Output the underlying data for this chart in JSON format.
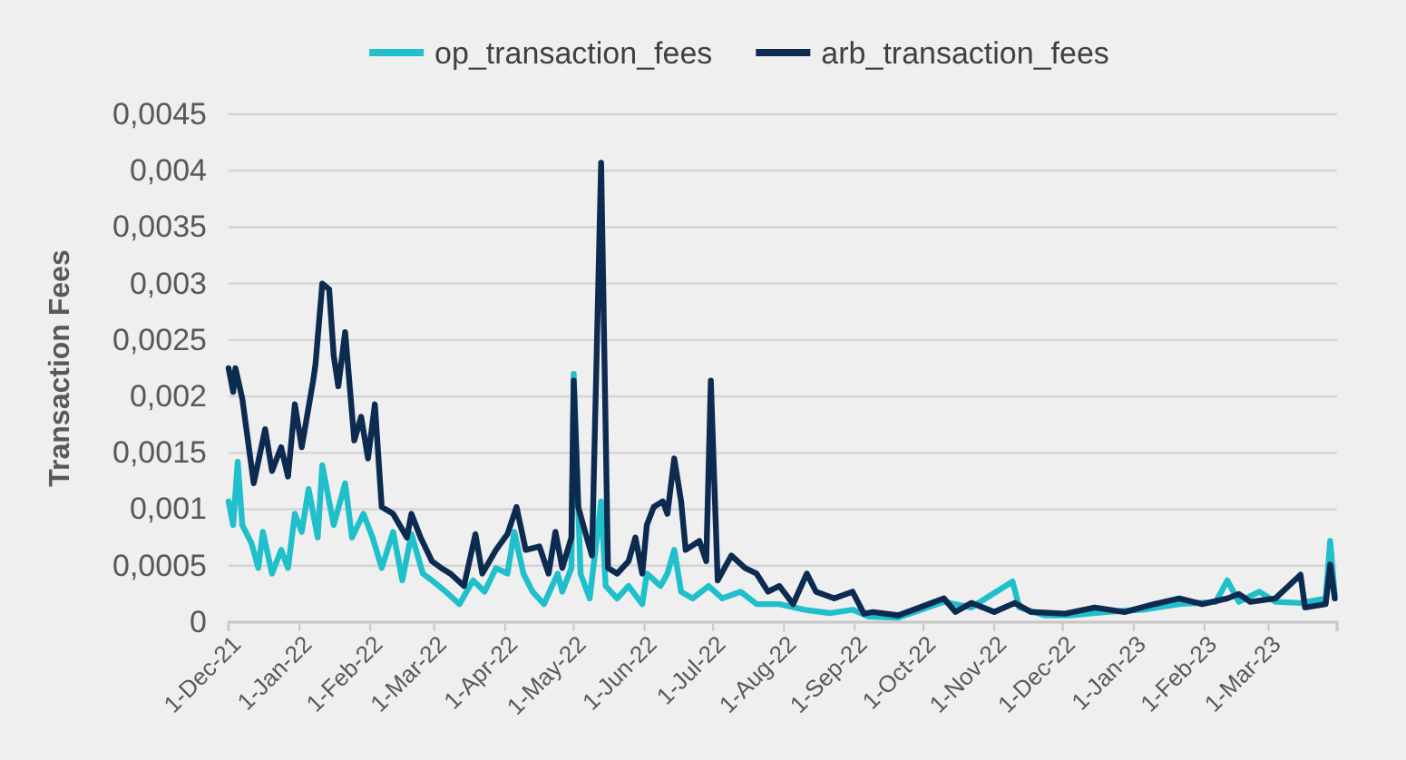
{
  "chart_data": {
    "type": "line",
    "ylabel": "Transaction Fees",
    "legend": "top",
    "grid": "y",
    "marker": "none",
    "line_style": "solid",
    "xlim": [
      "2021-12-01",
      "2023-03-31"
    ],
    "xticks": [
      {
        "value": "2021-12-01",
        "label": "1-Dec-21"
      },
      {
        "value": "2022-01-01",
        "label": "1-Jan-22"
      },
      {
        "value": "2022-02-01",
        "label": "1-Feb-22"
      },
      {
        "value": "2022-03-01",
        "label": "1-Mar-22"
      },
      {
        "value": "2022-04-01",
        "label": "1-Apr-22"
      },
      {
        "value": "2022-05-01",
        "label": "1-May-22"
      },
      {
        "value": "2022-06-01",
        "label": "1-Jun-22"
      },
      {
        "value": "2022-07-01",
        "label": "1-Jul-22"
      },
      {
        "value": "2022-08-01",
        "label": "1-Aug-22"
      },
      {
        "value": "2022-09-01",
        "label": "1-Sep-22"
      },
      {
        "value": "2022-10-01",
        "label": "1-Oct-22"
      },
      {
        "value": "2022-11-01",
        "label": "1-Nov-22"
      },
      {
        "value": "2022-12-01",
        "label": "1-Dec-22"
      },
      {
        "value": "2023-01-01",
        "label": "1-Jan-23"
      },
      {
        "value": "2023-02-01",
        "label": "1-Feb-23"
      },
      {
        "value": "2023-03-01",
        "label": "1-Mar-23"
      }
    ],
    "ylim": [
      0,
      0.0045
    ],
    "yticks": [
      0,
      {
        "value": 0.0005,
        "label": "0,0005"
      },
      {
        "value": 0.001,
        "label": "0,001"
      },
      {
        "value": 0.0015,
        "label": "0,0015"
      },
      {
        "value": 0.002,
        "label": "0,002"
      },
      {
        "value": 0.0025,
        "label": "0,0025"
      },
      {
        "value": 0.003,
        "label": "0,003"
      },
      {
        "value": 0.0035,
        "label": "0,0035"
      },
      {
        "value": 0.004,
        "label": "0,004"
      },
      {
        "value": 0.0045,
        "label": "0,0045"
      }
    ],
    "series": [
      {
        "name": "op_transaction_fees",
        "color": "#1fbfcc",
        "x": [
          "2021-12-01",
          "2021-12-03",
          "2021-12-05",
          "2021-12-07",
          "2021-12-11",
          "2021-12-14",
          "2021-12-16",
          "2021-12-20",
          "2021-12-24",
          "2021-12-27",
          "2021-12-30",
          "2022-01-02",
          "2022-01-05",
          "2022-01-09",
          "2022-01-11",
          "2022-01-14",
          "2022-01-16",
          "2022-01-21",
          "2022-01-24",
          "2022-01-29",
          "2022-02-02",
          "2022-02-06",
          "2022-02-11",
          "2022-02-15",
          "2022-02-19",
          "2022-02-24",
          "2022-02-28",
          "2022-03-06",
          "2022-03-12",
          "2022-03-18",
          "2022-03-23",
          "2022-03-28",
          "2022-04-02",
          "2022-04-05",
          "2022-04-09",
          "2022-04-13",
          "2022-04-18",
          "2022-04-24",
          "2022-04-26",
          "2022-04-30",
          "2022-05-01",
          "2022-05-04",
          "2022-05-08",
          "2022-05-13",
          "2022-05-15",
          "2022-05-20",
          "2022-05-25",
          "2022-05-31",
          "2022-06-02",
          "2022-06-08",
          "2022-06-11",
          "2022-06-14",
          "2022-06-17",
          "2022-06-22",
          "2022-06-29",
          "2022-07-05",
          "2022-07-13",
          "2022-07-20",
          "2022-07-30",
          "2022-08-10",
          "2022-08-21",
          "2022-08-31",
          "2022-09-07",
          "2022-09-20",
          "2022-10-10",
          "2022-10-22",
          "2022-11-09",
          "2022-11-12",
          "2022-11-23",
          "2022-12-04",
          "2022-12-20",
          "2023-01-05",
          "2023-01-21",
          "2023-02-06",
          "2023-02-11",
          "2023-02-16",
          "2023-02-25",
          "2023-03-04",
          "2023-03-15",
          "2023-03-26",
          "2023-03-28",
          "2023-03-30"
        ],
        "values": [
          0.00107,
          0.00086,
          0.00142,
          0.00086,
          0.0007,
          0.00048,
          0.0008,
          0.00043,
          0.00064,
          0.00048,
          0.00096,
          0.0008,
          0.00118,
          0.00075,
          0.00139,
          0.00107,
          0.00086,
          0.00123,
          0.00075,
          0.00096,
          0.00075,
          0.00048,
          0.0008,
          0.00037,
          0.00078,
          0.00043,
          0.00037,
          0.00027,
          0.00016,
          0.00037,
          0.00027,
          0.00048,
          0.00043,
          0.0008,
          0.00043,
          0.00027,
          0.00016,
          0.00043,
          0.00027,
          0.00048,
          0.0022,
          0.00043,
          0.00021,
          0.00107,
          0.00032,
          0.00021,
          0.00032,
          0.00016,
          0.00043,
          0.00032,
          0.00043,
          0.00064,
          0.00027,
          0.00021,
          0.00032,
          0.00021,
          0.00027,
          0.00016,
          0.00016,
          0.00011,
          8e-05,
          0.00011,
          5e-05,
          4e-05,
          0.00018,
          0.00013,
          0.00036,
          0.00013,
          6e-05,
          6e-05,
          9e-05,
          0.00011,
          0.00016,
          0.00018,
          0.00037,
          0.00018,
          0.00027,
          0.00018,
          0.00017,
          0.00021,
          0.00072,
          0.00024
        ]
      },
      {
        "name": "arb_transaction_fees",
        "color": "#0d2b50",
        "x": [
          "2021-12-01",
          "2021-12-03",
          "2021-12-04",
          "2021-12-07",
          "2021-12-12",
          "2021-12-17",
          "2021-12-20",
          "2021-12-24",
          "2021-12-27",
          "2021-12-30",
          "2022-01-02",
          "2022-01-07",
          "2022-01-08",
          "2022-01-11",
          "2022-01-14",
          "2022-01-16",
          "2022-01-18",
          "2022-01-21",
          "2022-01-25",
          "2022-01-28",
          "2022-01-31",
          "2022-02-03",
          "2022-02-06",
          "2022-02-11",
          "2022-02-17",
          "2022-02-19",
          "2022-02-23",
          "2022-02-28",
          "2022-03-04",
          "2022-03-08",
          "2022-03-14",
          "2022-03-19",
          "2022-03-22",
          "2022-03-28",
          "2022-04-02",
          "2022-04-06",
          "2022-04-10",
          "2022-04-16",
          "2022-04-20",
          "2022-04-23",
          "2022-04-26",
          "2022-04-30",
          "2022-05-01",
          "2022-05-03",
          "2022-05-06",
          "2022-05-09",
          "2022-05-13",
          "2022-05-16",
          "2022-05-20",
          "2022-05-25",
          "2022-05-28",
          "2022-05-31",
          "2022-06-02",
          "2022-06-05",
          "2022-06-09",
          "2022-06-11",
          "2022-06-14",
          "2022-06-17",
          "2022-06-19",
          "2022-06-25",
          "2022-06-28",
          "2022-06-30",
          "2022-07-03",
          "2022-07-09",
          "2022-07-15",
          "2022-07-20",
          "2022-07-25",
          "2022-07-30",
          "2022-08-05",
          "2022-08-11",
          "2022-08-15",
          "2022-08-23",
          "2022-08-31",
          "2022-09-05",
          "2022-09-09",
          "2022-09-20",
          "2022-10-10",
          "2022-10-15",
          "2022-10-22",
          "2022-11-01",
          "2022-11-10",
          "2022-11-17",
          "2022-12-02",
          "2022-12-15",
          "2022-12-28",
          "2023-01-10",
          "2023-01-21",
          "2023-01-31",
          "2023-02-11",
          "2023-02-16",
          "2023-02-21",
          "2023-03-04",
          "2023-03-15",
          "2023-03-17",
          "2023-03-26",
          "2023-03-28",
          "2023-03-30"
        ],
        "values": [
          0.00225,
          0.00204,
          0.00225,
          0.00198,
          0.00123,
          0.00171,
          0.00134,
          0.00155,
          0.00129,
          0.00193,
          0.00155,
          0.00214,
          0.00228,
          0.003,
          0.00295,
          0.00236,
          0.00209,
          0.00257,
          0.00161,
          0.00182,
          0.00145,
          0.00193,
          0.00102,
          0.00096,
          0.00075,
          0.00096,
          0.00075,
          0.00054,
          0.00048,
          0.00043,
          0.00032,
          0.00078,
          0.00043,
          0.00064,
          0.00078,
          0.00102,
          0.00064,
          0.00067,
          0.00043,
          0.0008,
          0.00048,
          0.00075,
          0.00214,
          0.00102,
          0.0008,
          0.00059,
          0.00407,
          0.00048,
          0.00043,
          0.00054,
          0.00075,
          0.00043,
          0.00086,
          0.00102,
          0.00107,
          0.00096,
          0.00145,
          0.00107,
          0.00064,
          0.00072,
          0.00054,
          0.00214,
          0.00037,
          0.00059,
          0.00048,
          0.00043,
          0.00027,
          0.00032,
          0.00016,
          0.00043,
          0.00027,
          0.00021,
          0.00027,
          7.5e-05,
          9e-05,
          6e-05,
          0.00021,
          9e-05,
          0.00017,
          9e-05,
          0.00017,
          9e-05,
          7.5e-05,
          0.00013,
          9e-05,
          0.00016,
          0.00021,
          0.00016,
          0.00021,
          0.00025,
          0.00018,
          0.00021,
          0.00042,
          0.00013,
          0.00016,
          0.00051,
          0.00021
        ]
      }
    ]
  }
}
